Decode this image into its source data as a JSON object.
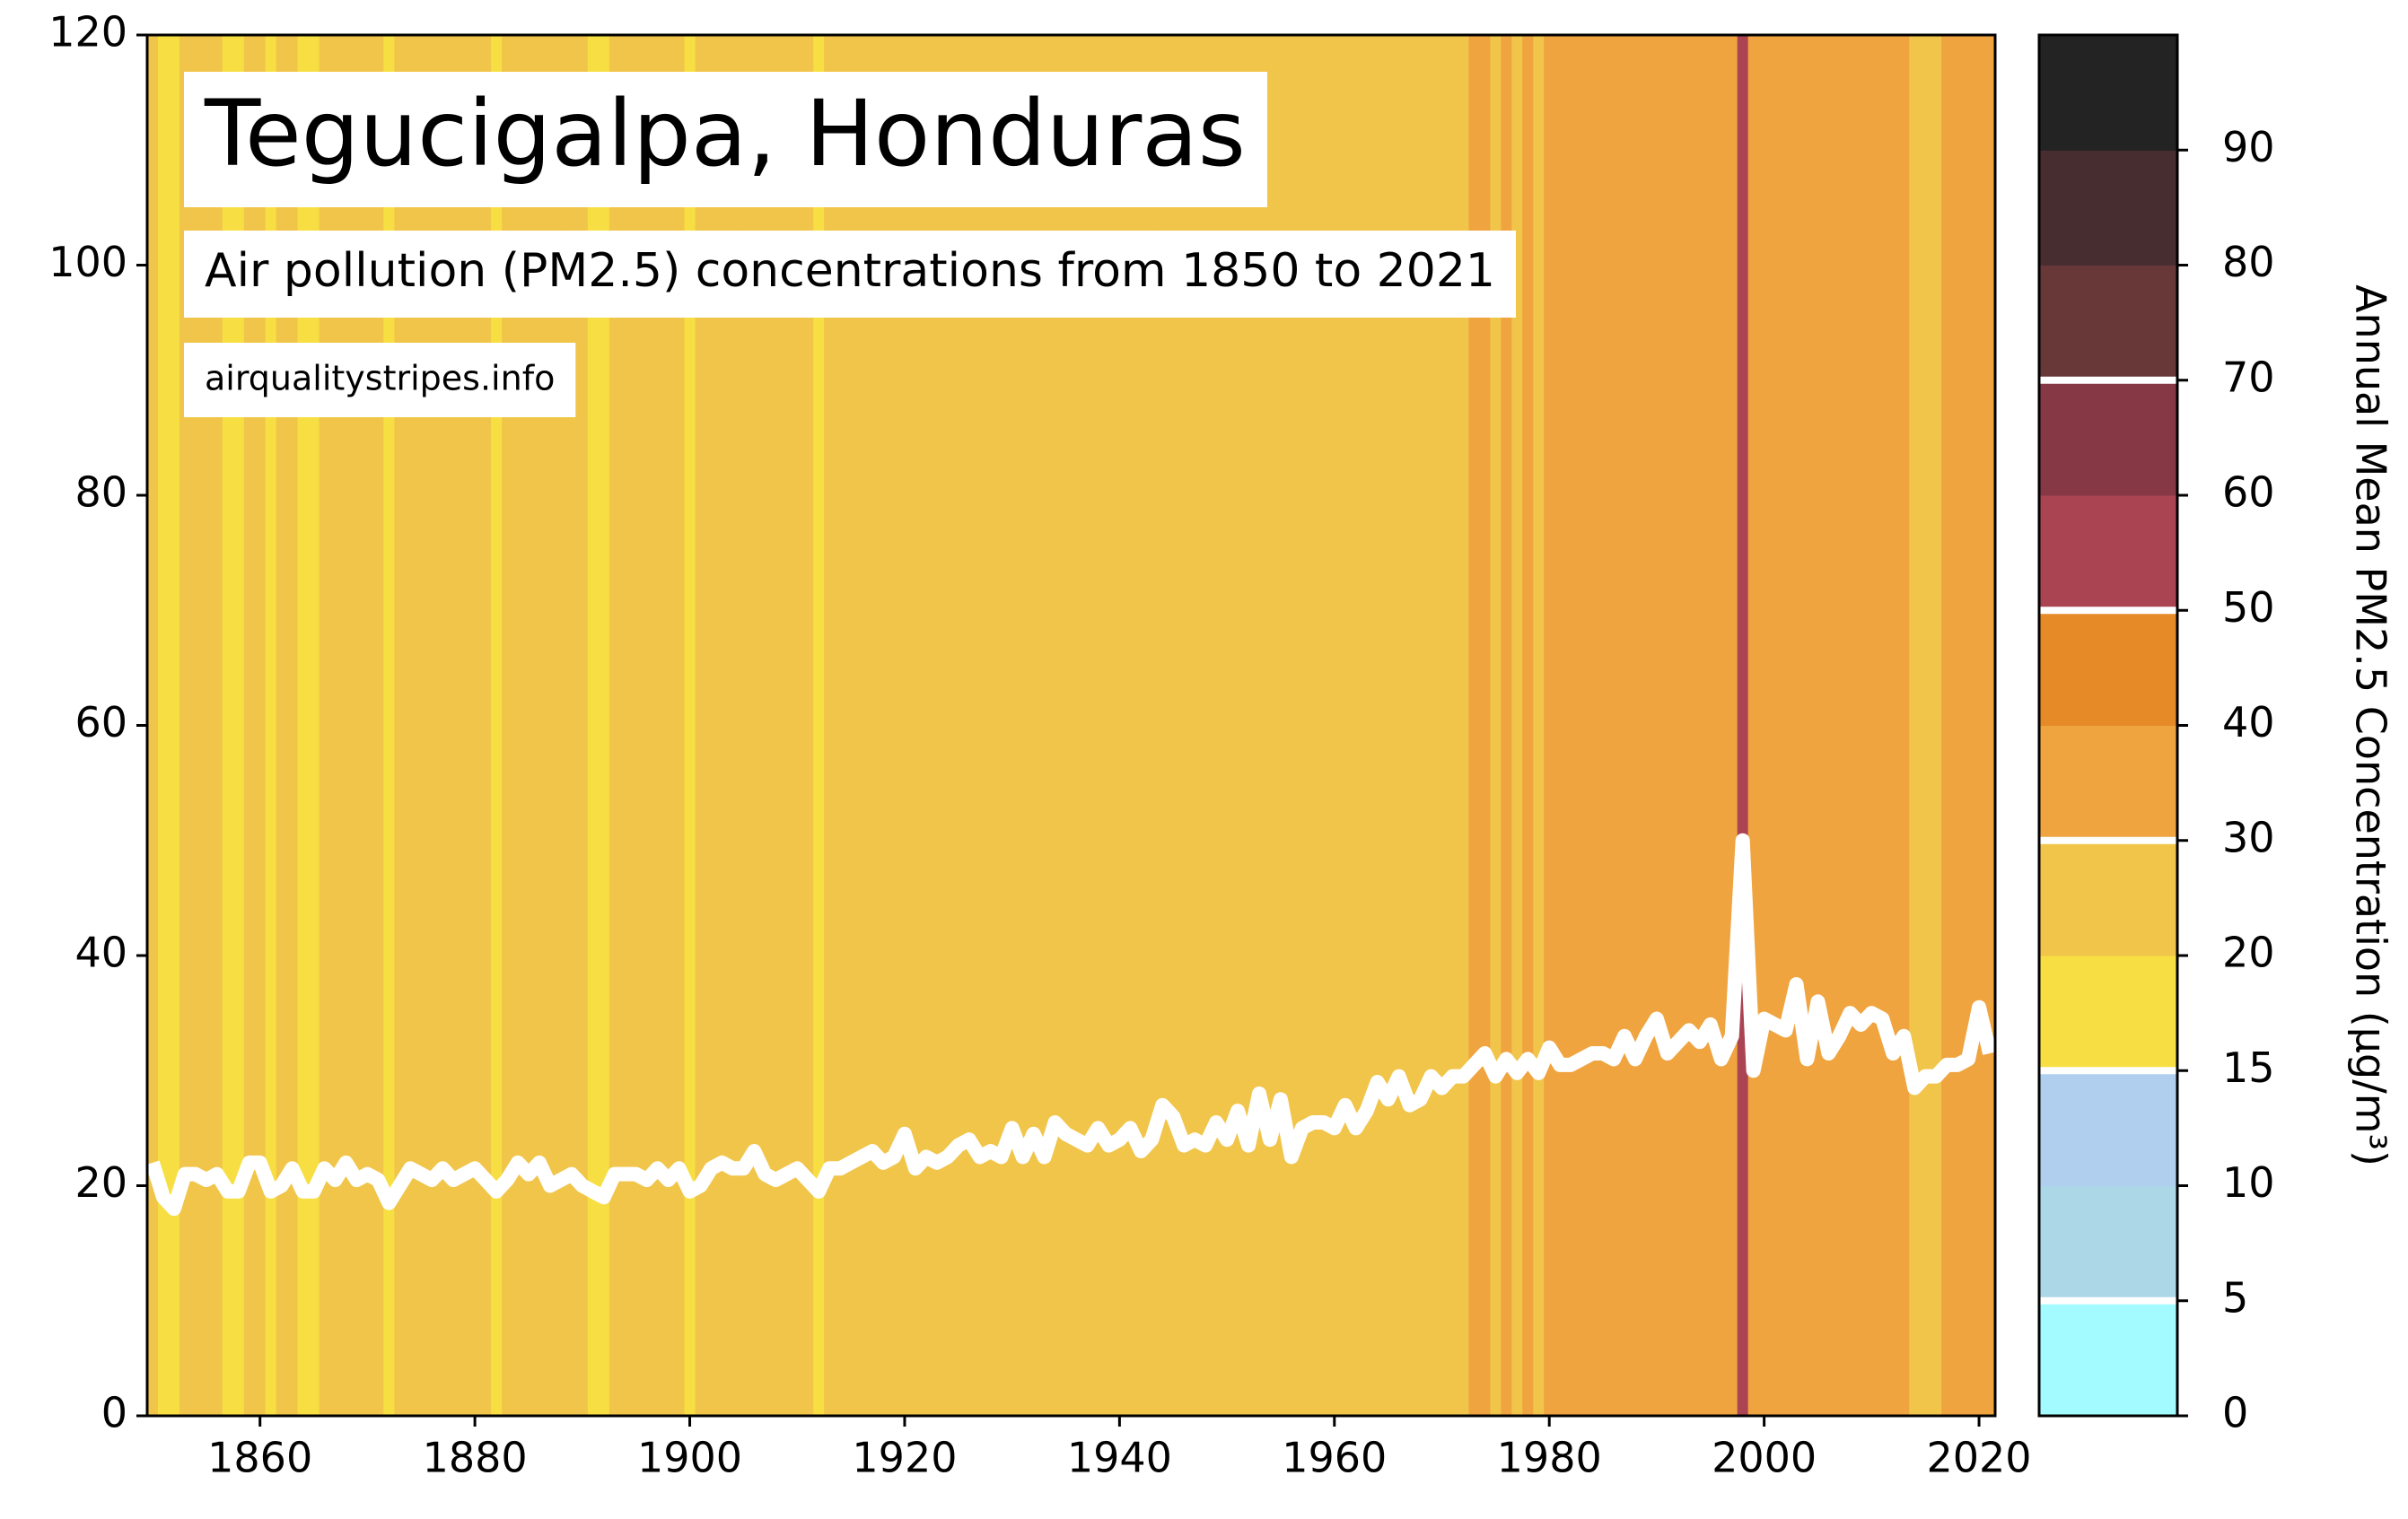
{
  "chart_data": {
    "type": "line",
    "title": "Tegucigalpa, Honduras",
    "subtitle": "Air pollution (PM2.5) concentrations from 1850 to 2021",
    "source": "airqualitystripes.info",
    "x": [
      1850,
      1851,
      1852,
      1853,
      1854,
      1855,
      1856,
      1857,
      1858,
      1859,
      1860,
      1861,
      1862,
      1863,
      1864,
      1865,
      1866,
      1867,
      1868,
      1869,
      1870,
      1871,
      1872,
      1873,
      1874,
      1875,
      1876,
      1877,
      1878,
      1879,
      1880,
      1881,
      1882,
      1883,
      1884,
      1885,
      1886,
      1887,
      1888,
      1889,
      1890,
      1891,
      1892,
      1893,
      1894,
      1895,
      1896,
      1897,
      1898,
      1899,
      1900,
      1901,
      1902,
      1903,
      1904,
      1905,
      1906,
      1907,
      1908,
      1909,
      1910,
      1911,
      1912,
      1913,
      1914,
      1915,
      1916,
      1917,
      1918,
      1919,
      1920,
      1921,
      1922,
      1923,
      1924,
      1925,
      1926,
      1927,
      1928,
      1929,
      1930,
      1931,
      1932,
      1933,
      1934,
      1935,
      1936,
      1937,
      1938,
      1939,
      1940,
      1941,
      1942,
      1943,
      1944,
      1945,
      1946,
      1947,
      1948,
      1949,
      1950,
      1951,
      1952,
      1953,
      1954,
      1955,
      1956,
      1957,
      1958,
      1959,
      1960,
      1961,
      1962,
      1963,
      1964,
      1965,
      1966,
      1967,
      1968,
      1969,
      1970,
      1971,
      1972,
      1973,
      1974,
      1975,
      1976,
      1977,
      1978,
      1979,
      1980,
      1981,
      1982,
      1983,
      1984,
      1985,
      1986,
      1987,
      1988,
      1989,
      1990,
      1991,
      1992,
      1993,
      1994,
      1995,
      1996,
      1997,
      1998,
      1999,
      2000,
      2001,
      2002,
      2003,
      2004,
      2005,
      2006,
      2007,
      2008,
      2009,
      2010,
      2011,
      2012,
      2013,
      2014,
      2015,
      2016,
      2017,
      2018,
      2019,
      2020,
      2021
    ],
    "series": [
      {
        "color": "#ffffff",
        "values": [
          22,
          19,
          18,
          21,
          21,
          20.5,
          21,
          19.5,
          19.5,
          22,
          22,
          19.5,
          20,
          21.5,
          19.5,
          19.5,
          21.5,
          20.5,
          22,
          20.5,
          21,
          20.5,
          18.5,
          20,
          21.5,
          21,
          20.5,
          21.5,
          20.5,
          21,
          21.5,
          20.5,
          19.5,
          20.5,
          22,
          21,
          22,
          20,
          20.5,
          21,
          20,
          19.5,
          19,
          21,
          21,
          21,
          20.5,
          21.5,
          20.5,
          21.5,
          19.5,
          20,
          21.5,
          22,
          21.5,
          21.5,
          23,
          21,
          20.5,
          21,
          21.5,
          20.5,
          19.5,
          21.5,
          21.5,
          22,
          22.5,
          23,
          22,
          22.5,
          24.5,
          21.5,
          22.5,
          22,
          22.5,
          23.5,
          24,
          22.5,
          23,
          22.5,
          25,
          22.5,
          24.5,
          22.5,
          25.5,
          24.5,
          24,
          23.5,
          25,
          23.5,
          24,
          25,
          23,
          24,
          27,
          26,
          23.5,
          24,
          23.5,
          25.5,
          24,
          26.5,
          23.5,
          28,
          24,
          27.5,
          22.5,
          25,
          25.5,
          25.5,
          25,
          27,
          25,
          26.5,
          29,
          27.5,
          29.5,
          27,
          27.5,
          29.5,
          28.5,
          29.5,
          29.5,
          30.5,
          31.5,
          29.5,
          31,
          29.8,
          31,
          29.8,
          32,
          30.5,
          30.5,
          31,
          31.5,
          31.5,
          31,
          33,
          31,
          33,
          34.5,
          31.5,
          32.5,
          33.5,
          32.5,
          34,
          31,
          33,
          50,
          30,
          34.5,
          34,
          33.5,
          37.5,
          31,
          36,
          31.5,
          33,
          35,
          34,
          35,
          34.5,
          31.5,
          33,
          28.5,
          29.5,
          29.5,
          30.5,
          30.5,
          31,
          35.5,
          31.5
        ]
      }
    ],
    "xlim": [
      1849.5,
      2021.5
    ],
    "ylim": [
      0,
      120
    ],
    "xticks": [
      1860,
      1880,
      1900,
      1920,
      1940,
      1960,
      1980,
      2000,
      2020
    ],
    "yticks": [
      0,
      20,
      40,
      60,
      80,
      100,
      120
    ],
    "colorbar": {
      "label": "Annual Mean PM2.5 Concentration (µg/m³)",
      "bounds": [
        0,
        5,
        10,
        15,
        20,
        30,
        40,
        50,
        60,
        70,
        80,
        90,
        100
      ],
      "colors": [
        "#a3fbff",
        "#acd7e6",
        "#b0cfee",
        "#f7df43",
        "#f1c54a",
        "#efa43f",
        "#e68a27",
        "#ab4452",
        "#873845",
        "#683839",
        "#472d30",
        "#232323"
      ],
      "ticks": [
        0,
        5,
        10,
        15,
        20,
        30,
        40,
        50,
        60,
        70,
        80,
        90
      ],
      "lines": [
        5,
        15,
        30,
        50,
        70
      ]
    }
  }
}
